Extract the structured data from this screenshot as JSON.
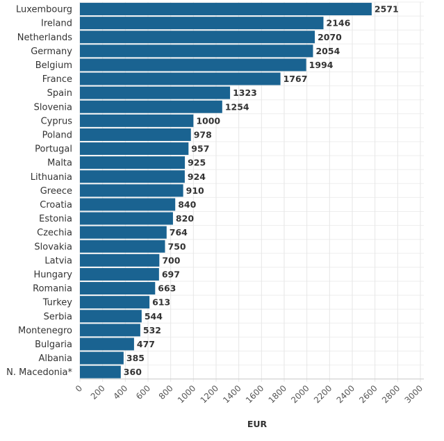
{
  "chart_data": {
    "type": "bar",
    "orientation": "horizontal",
    "categories": [
      "Luxembourg",
      "Ireland",
      "Netherlands",
      "Germany",
      "Belgium",
      "France",
      "Spain",
      "Slovenia",
      "Cyprus",
      "Poland",
      "Portugal",
      "Malta",
      "Lithuania",
      "Greece",
      "Croatia",
      "Estonia",
      "Czechia",
      "Slovakia",
      "Latvia",
      "Hungary",
      "Romania",
      "Turkey",
      "Serbia",
      "Montenegro",
      "Bulgaria",
      "Albania",
      "N. Macedonia*"
    ],
    "values": [
      2571,
      2146,
      2070,
      2054,
      1994,
      1767,
      1323,
      1254,
      1000,
      978,
      957,
      925,
      924,
      910,
      840,
      820,
      764,
      750,
      700,
      697,
      663,
      613,
      544,
      532,
      477,
      385,
      360
    ],
    "value_labels": [
      "2571",
      "2146",
      "2070",
      "2054",
      "1994",
      "1767",
      "1323",
      "1254",
      "1000",
      "978",
      "957",
      "925",
      "924",
      "910",
      "840",
      "820",
      "764",
      "750",
      "700",
      "697",
      "663",
      "613",
      "544",
      "532",
      "477",
      "385",
      "360"
    ],
    "xlabel": "EUR",
    "xlim": [
      0,
      3000
    ],
    "x_ticks": [
      0,
      200,
      400,
      600,
      800,
      1000,
      1200,
      1400,
      1600,
      1800,
      2000,
      2200,
      2400,
      2600,
      2800,
      3000
    ],
    "x_tick_labels": [
      "0",
      "200",
      "400",
      "600",
      "800",
      "1000",
      "1200",
      "1400",
      "1600",
      "1800",
      "2000",
      "2200",
      "2400",
      "2600",
      "2800",
      "3000"
    ],
    "grid": true,
    "bar_color": "#1a6391"
  }
}
